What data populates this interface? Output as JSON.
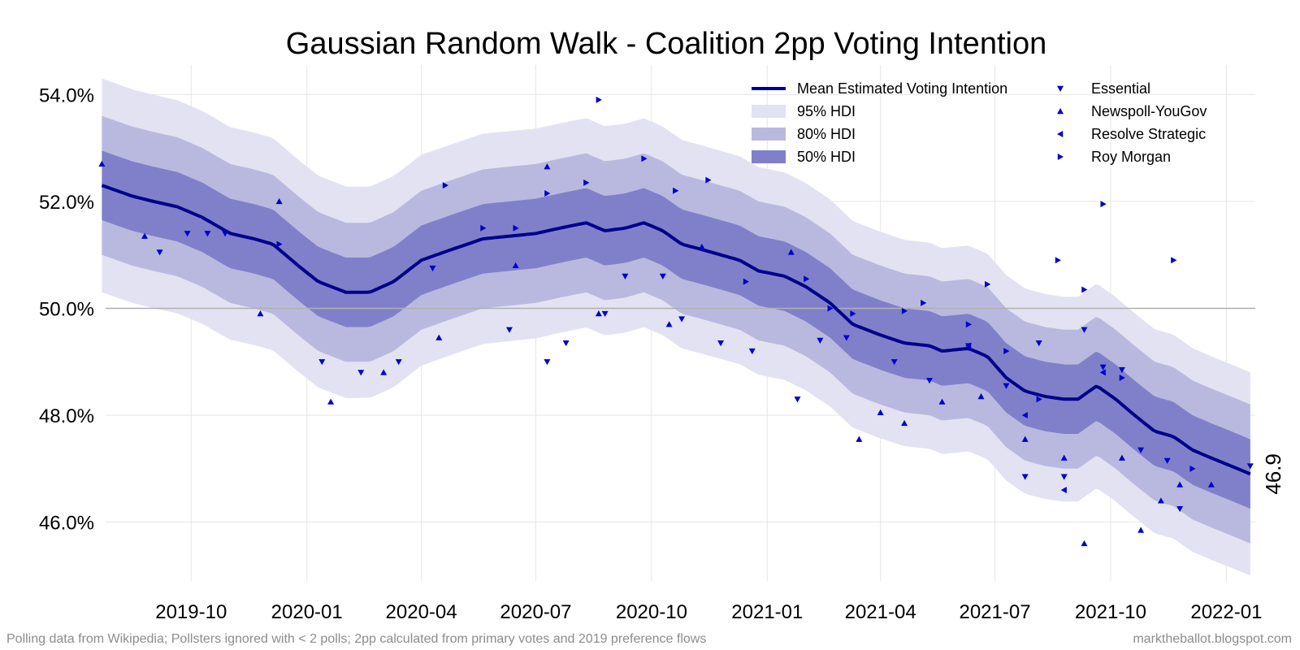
{
  "chart_data": {
    "type": "line",
    "title": "Gaussian Random Walk - Coalition 2pp Voting Intention",
    "xlabel": "",
    "ylabel": "",
    "x_range": [
      "2019-07-25",
      "2022-01-24"
    ],
    "ylim": [
      44.9,
      54.4
    ],
    "y_ticks": [
      {
        "value": 46,
        "label": "46.0%"
      },
      {
        "value": 48,
        "label": "48.0%"
      },
      {
        "value": 50,
        "label": "50.0%"
      },
      {
        "value": 52,
        "label": "52.0%"
      },
      {
        "value": 54,
        "label": "54.0%"
      }
    ],
    "x_ticks": [
      {
        "date": "2019-10-01",
        "label": "2019-10"
      },
      {
        "date": "2020-01-01",
        "label": "2020-01"
      },
      {
        "date": "2020-04-01",
        "label": "2020-04"
      },
      {
        "date": "2020-07-01",
        "label": "2020-07"
      },
      {
        "date": "2020-10-01",
        "label": "2020-10"
      },
      {
        "date": "2021-01-01",
        "label": "2021-01"
      },
      {
        "date": "2021-04-01",
        "label": "2021-04"
      },
      {
        "date": "2021-07-01",
        "label": "2021-07"
      },
      {
        "date": "2021-10-01",
        "label": "2021-10"
      },
      {
        "date": "2022-01-01",
        "label": "2022-01"
      }
    ],
    "reference_line": 50,
    "grid": true,
    "legend_position": "top-right",
    "end_label": "46.9",
    "mean": {
      "name": "Mean Estimated Voting Intention",
      "color": "#00008b",
      "points": [
        [
          "2019-07-22",
          52.3
        ],
        [
          "2019-08-15",
          52.1
        ],
        [
          "2019-09-01",
          52.0
        ],
        [
          "2019-09-20",
          51.9
        ],
        [
          "2019-10-10",
          51.7
        ],
        [
          "2019-11-01",
          51.4
        ],
        [
          "2019-11-20",
          51.3
        ],
        [
          "2019-12-05",
          51.2
        ],
        [
          "2019-12-25",
          50.8
        ],
        [
          "2020-01-10",
          50.5
        ],
        [
          "2020-02-01",
          50.3
        ],
        [
          "2020-02-20",
          50.3
        ],
        [
          "2020-03-10",
          50.5
        ],
        [
          "2020-04-01",
          50.9
        ],
        [
          "2020-04-25",
          51.1
        ],
        [
          "2020-05-20",
          51.3
        ],
        [
          "2020-06-10",
          51.35
        ],
        [
          "2020-07-01",
          51.4
        ],
        [
          "2020-07-20",
          51.5
        ],
        [
          "2020-08-10",
          51.6
        ],
        [
          "2020-08-25",
          51.45
        ],
        [
          "2020-09-10",
          51.5
        ],
        [
          "2020-09-25",
          51.6
        ],
        [
          "2020-10-10",
          51.45
        ],
        [
          "2020-10-25",
          51.2
        ],
        [
          "2020-11-10",
          51.1
        ],
        [
          "2020-11-25",
          51.0
        ],
        [
          "2020-12-10",
          50.9
        ],
        [
          "2020-12-25",
          50.7
        ],
        [
          "2021-01-15",
          50.6
        ],
        [
          "2021-02-01",
          50.4
        ],
        [
          "2021-02-20",
          50.1
        ],
        [
          "2021-03-10",
          49.7
        ],
        [
          "2021-04-01",
          49.5
        ],
        [
          "2021-04-20",
          49.35
        ],
        [
          "2021-05-10",
          49.3
        ],
        [
          "2021-05-20",
          49.2
        ],
        [
          "2021-06-10",
          49.25
        ],
        [
          "2021-06-25",
          49.1
        ],
        [
          "2021-07-10",
          48.7
        ],
        [
          "2021-07-25",
          48.45
        ],
        [
          "2021-08-10",
          48.35
        ],
        [
          "2021-08-25",
          48.3
        ],
        [
          "2021-09-05",
          48.3
        ],
        [
          "2021-09-20",
          48.55
        ],
        [
          "2021-10-05",
          48.3
        ],
        [
          "2021-10-20",
          48.0
        ],
        [
          "2021-11-05",
          47.7
        ],
        [
          "2021-11-20",
          47.6
        ],
        [
          "2021-12-05",
          47.35
        ],
        [
          "2021-12-20",
          47.2
        ],
        [
          "2022-01-10",
          47.0
        ],
        [
          "2022-01-20",
          46.9
        ]
      ]
    },
    "bands": [
      {
        "name": "95% HDI",
        "color": "#e2e2f3",
        "halfwidth_start": 2.0,
        "halfwidth_end": 1.9
      },
      {
        "name": "80% HDI",
        "color": "#b9b9e0",
        "halfwidth_start": 1.3,
        "halfwidth_end": 1.3
      },
      {
        "name": "50% HDI",
        "color": "#8080ca",
        "halfwidth_start": 0.65,
        "halfwidth_end": 0.65
      }
    ],
    "pollsters": [
      {
        "name": "Essential",
        "marker": "triangle-down",
        "color": "#0000cd",
        "points": [
          [
            "2019-09-06",
            51.05
          ],
          [
            "2019-09-28",
            51.4
          ],
          [
            "2019-10-14",
            51.4
          ],
          [
            "2019-10-28",
            51.4
          ],
          [
            "2020-01-13",
            49.0
          ],
          [
            "2020-02-13",
            48.8
          ],
          [
            "2020-03-14",
            49.0
          ],
          [
            "2020-04-10",
            50.75
          ],
          [
            "2020-06-10",
            49.6
          ],
          [
            "2020-07-10",
            49.0
          ],
          [
            "2020-07-25",
            49.35
          ],
          [
            "2020-08-25",
            49.9
          ],
          [
            "2020-09-10",
            50.6
          ],
          [
            "2020-10-10",
            50.6
          ],
          [
            "2020-10-25",
            49.8
          ],
          [
            "2020-11-25",
            49.35
          ],
          [
            "2020-12-20",
            49.2
          ],
          [
            "2021-01-25",
            48.3
          ],
          [
            "2021-02-12",
            49.4
          ],
          [
            "2021-03-05",
            49.45
          ],
          [
            "2021-04-12",
            49.0
          ],
          [
            "2021-05-10",
            48.65
          ],
          [
            "2021-06-10",
            49.3
          ],
          [
            "2021-07-10",
            48.55
          ],
          [
            "2021-08-05",
            49.35
          ],
          [
            "2021-08-25",
            46.85
          ],
          [
            "2021-09-10",
            49.6
          ],
          [
            "2021-09-25",
            48.9
          ],
          [
            "2021-10-10",
            48.85
          ],
          [
            "2021-10-25",
            47.35
          ],
          [
            "2021-11-15",
            47.15
          ],
          [
            "2021-11-25",
            46.25
          ],
          [
            "2022-01-20",
            47.05
          ],
          [
            "2021-07-25",
            46.85
          ]
        ]
      },
      {
        "name": "Newspoll-YouGov",
        "marker": "triangle-up",
        "color": "#0000cd",
        "points": [
          [
            "2019-07-22",
            52.7
          ],
          [
            "2019-08-25",
            51.35
          ],
          [
            "2019-11-25",
            49.9
          ],
          [
            "2019-12-10",
            52.0
          ],
          [
            "2020-01-20",
            48.25
          ],
          [
            "2020-03-02",
            48.8
          ],
          [
            "2020-04-15",
            49.45
          ],
          [
            "2020-06-15",
            50.8
          ],
          [
            "2020-07-10",
            52.65
          ],
          [
            "2020-08-20",
            49.9
          ],
          [
            "2020-10-15",
            49.7
          ],
          [
            "2020-11-10",
            51.15
          ],
          [
            "2021-01-20",
            51.05
          ],
          [
            "2021-03-15",
            47.55
          ],
          [
            "2021-04-01",
            48.05
          ],
          [
            "2021-04-20",
            47.85
          ],
          [
            "2021-05-20",
            48.25
          ],
          [
            "2021-06-20",
            48.35
          ],
          [
            "2021-07-25",
            47.55
          ],
          [
            "2021-08-25",
            47.2
          ],
          [
            "2021-09-10",
            45.6
          ],
          [
            "2021-10-10",
            47.2
          ],
          [
            "2021-10-25",
            45.85
          ],
          [
            "2021-11-10",
            46.4
          ],
          [
            "2021-11-25",
            46.7
          ],
          [
            "2021-12-20",
            46.7
          ]
        ]
      },
      {
        "name": "Resolve Strategic",
        "marker": "triangle-left",
        "color": "#0000cd",
        "points": [
          [
            "2021-06-10",
            49.3
          ],
          [
            "2021-07-25",
            48.0
          ],
          [
            "2021-08-25",
            46.6
          ],
          [
            "2021-09-25",
            48.8
          ]
        ]
      },
      {
        "name": "Roy Morgan",
        "marker": "triangle-right",
        "color": "#0000cd",
        "points": [
          [
            "2019-12-10",
            51.2
          ],
          [
            "2020-04-20",
            52.3
          ],
          [
            "2020-05-20",
            51.5
          ],
          [
            "2020-06-15",
            51.5
          ],
          [
            "2020-07-10",
            52.15
          ],
          [
            "2020-08-10",
            52.35
          ],
          [
            "2020-08-20",
            53.9
          ],
          [
            "2020-09-25",
            52.8
          ],
          [
            "2020-10-20",
            52.2
          ],
          [
            "2020-11-15",
            52.4
          ],
          [
            "2020-12-15",
            50.5
          ],
          [
            "2021-02-01",
            50.55
          ],
          [
            "2021-02-20",
            50.0
          ],
          [
            "2021-03-10",
            49.9
          ],
          [
            "2021-04-20",
            49.95
          ],
          [
            "2021-05-05",
            50.1
          ],
          [
            "2021-06-10",
            49.7
          ],
          [
            "2021-06-25",
            50.45
          ],
          [
            "2021-07-10",
            49.2
          ],
          [
            "2021-08-05",
            48.3
          ],
          [
            "2021-08-20",
            50.9
          ],
          [
            "2021-09-10",
            50.35
          ],
          [
            "2021-09-25",
            51.95
          ],
          [
            "2021-10-10",
            48.7
          ],
          [
            "2021-11-20",
            50.9
          ],
          [
            "2021-12-05",
            47.0
          ]
        ]
      }
    ]
  },
  "footer": {
    "left": "Polling data from Wikipedia; Pollsters ignored with < 2 polls; 2pp calculated from primary votes and 2019 preference flows",
    "right": "marktheballot.blogspot.com"
  }
}
